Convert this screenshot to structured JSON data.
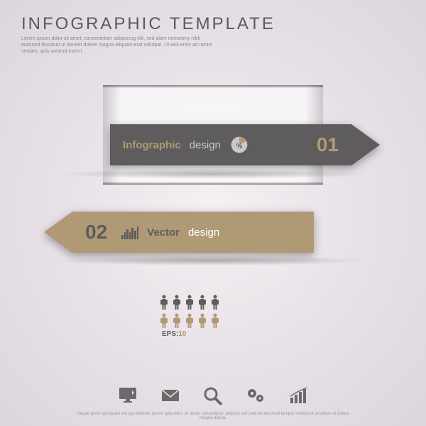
{
  "header": {
    "title": "INFOGRAPHIC TEMPLATE",
    "subtitle": "Lorem ipsum dolor sit amet, consectetuer adipiscing elit, sed diam nonummy nibh euismod tincidunt ut laoreet dolore magna aliquam erat volutpat. Ut wisi enim ad minim veniam, quis nostrud exerci."
  },
  "arrows": [
    {
      "bold": "Infographic",
      "light": "design",
      "number": "01",
      "color": "#5e5c5c",
      "accent": "#b09a76",
      "icon": "pie"
    },
    {
      "bold": "Vector",
      "light": "design",
      "number": "02",
      "color": "#b09a76",
      "accent": "#5e5c5c",
      "icon": "bars"
    }
  ],
  "people": {
    "row1_color": "#5e5c5c",
    "row1_count": 5,
    "row2_color": "#b09a76",
    "row2_count": 5
  },
  "eps": {
    "label": "EPS",
    "value": "10"
  },
  "footer_icons": [
    "monitor",
    "mail",
    "search",
    "gears",
    "chart"
  ],
  "footer_text": "Neque porro quisquam est qui dolorem ipsum quia dolor sit amet, consectetur, adipisci velit sed do eiusmod tempor incididunt ut labore et dolore magna aliqua.",
  "colors": {
    "dark": "#5e5c5c",
    "tan": "#b09a76",
    "bg_light": "#f5f0f3",
    "bg_dark": "#ddd6dd",
    "text_muted": "#888"
  }
}
